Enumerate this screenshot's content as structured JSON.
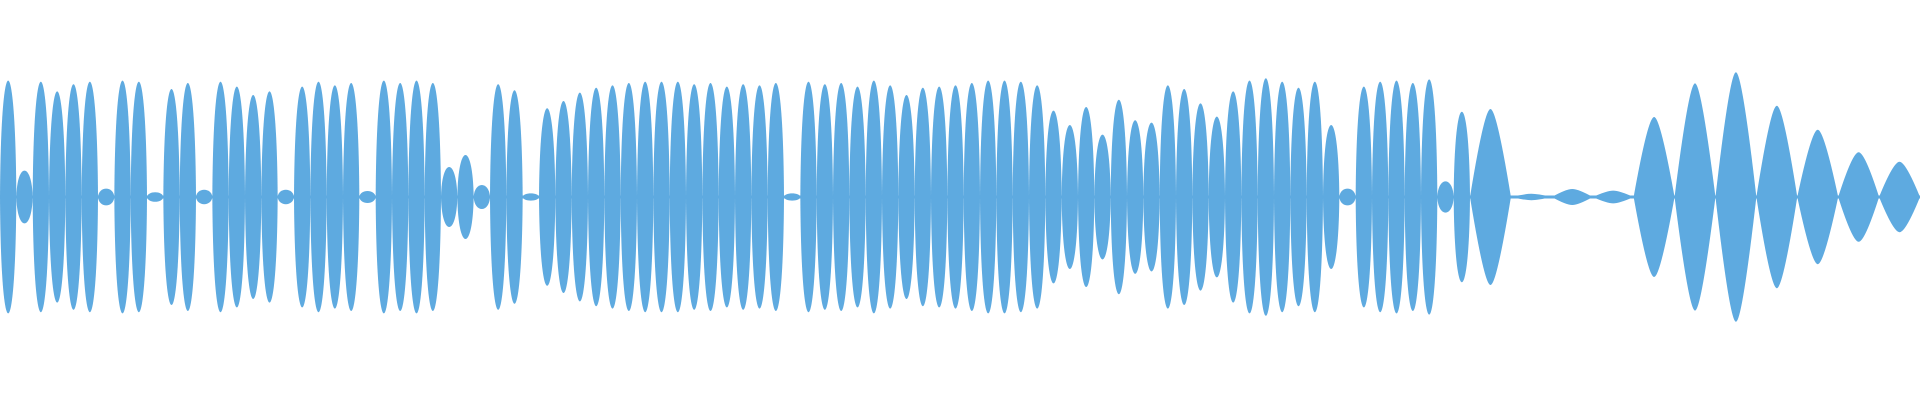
{
  "waveform": {
    "color": "#5EAAE0",
    "background": "#ffffff",
    "envelope": [
      0.97,
      0.22,
      0.96,
      0.88,
      0.94,
      0.96,
      0.07,
      0.97,
      0.96,
      0.04,
      0.9,
      0.95,
      0.06,
      0.96,
      0.92,
      0.85,
      0.88,
      0.06,
      0.92,
      0.96,
      0.93,
      0.95,
      0.05,
      0.97,
      0.95,
      0.97,
      0.95,
      0.25,
      0.35,
      0.1,
      0.94,
      0.89,
      0.03,
      0.74,
      0.8,
      0.87,
      0.91,
      0.93,
      0.95,
      0.96,
      0.96,
      0.96,
      0.94,
      0.95,
      0.92,
      0.94,
      0.93,
      0.95,
      0.03,
      0.96,
      0.94,
      0.95,
      0.92,
      0.97,
      0.93,
      0.85,
      0.91,
      0.92,
      0.93,
      0.95,
      0.97,
      0.97,
      0.96,
      0.93,
      0.72,
      0.6,
      0.75,
      0.52,
      0.81,
      0.64,
      0.62,
      0.93,
      0.9,
      0.78,
      0.67,
      0.88,
      0.97,
      0.99,
      0.96,
      0.91,
      0.96,
      0.6,
      0.07,
      0.92,
      0.96,
      0.97,
      0.95,
      0.98,
      0.13,
      0.71
    ],
    "tail_peaks": [
      0.55,
      0.02,
      0.05,
      0.04,
      0.5,
      0.71,
      0.78,
      0.57,
      0.42,
      0.28,
      0.22
    ]
  }
}
